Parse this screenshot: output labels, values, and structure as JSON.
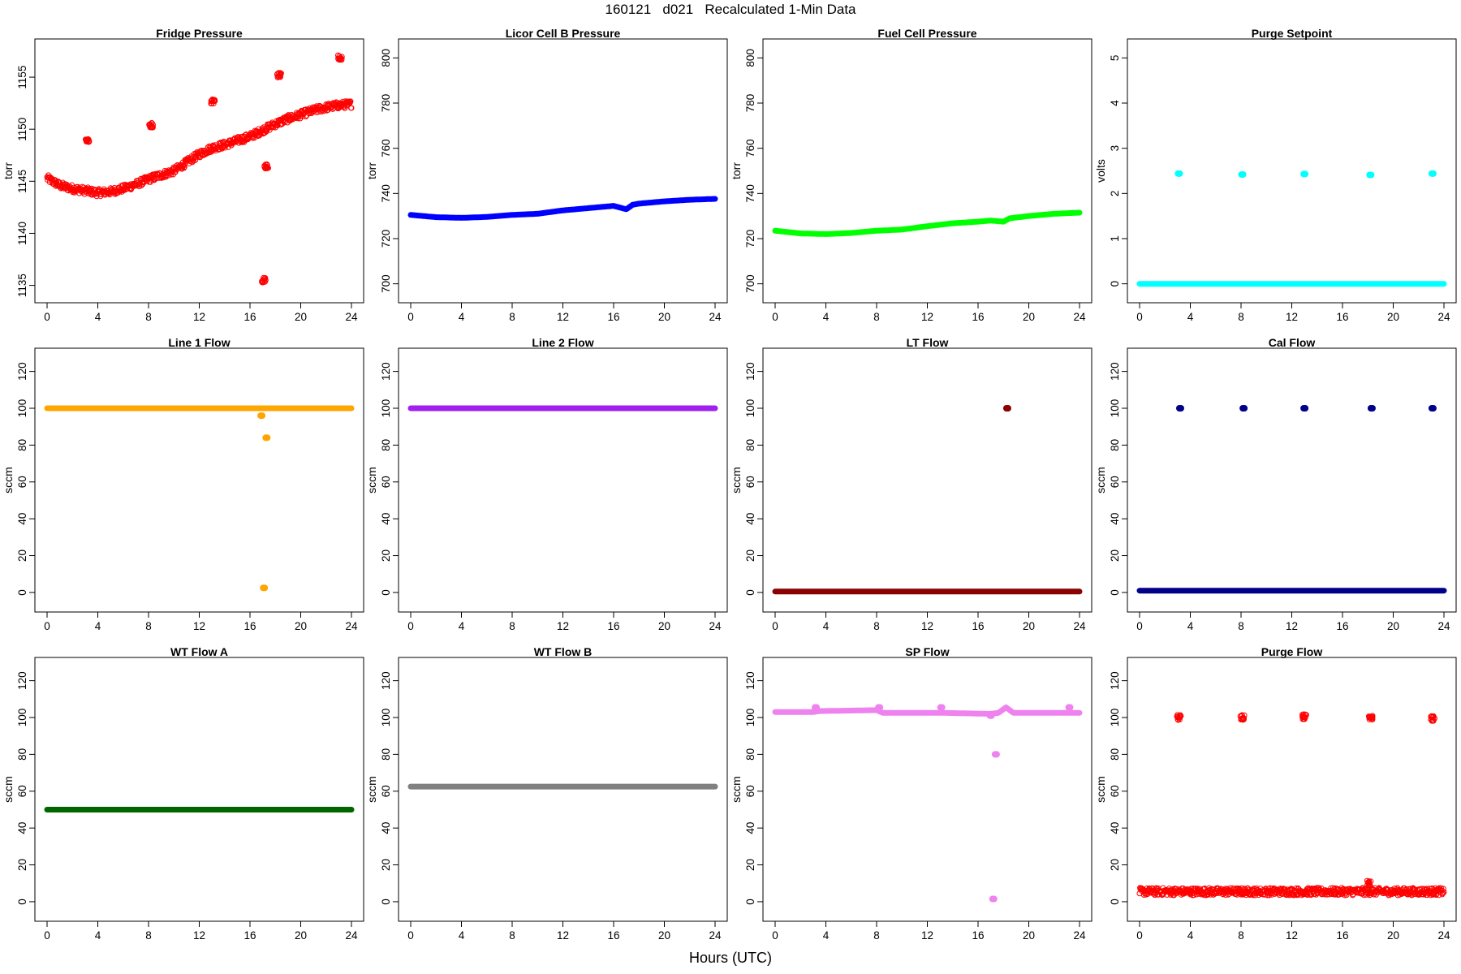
{
  "page": {
    "title": "160121   d021   Recalculated 1-Min Data",
    "xlabel": "Hours (UTC)"
  },
  "chart_data": [
    {
      "type": "scatter",
      "title": "Fridge Pressure",
      "ylabel": "torr",
      "xlim": [
        0,
        24
      ],
      "ylim": [
        1134.5,
        1157.5
      ],
      "xticks": [
        0,
        4,
        8,
        12,
        16,
        20,
        24
      ],
      "yticks": [
        1135,
        1140,
        1145,
        1150,
        1155
      ],
      "color": "#ff0000",
      "marker": "open-circle",
      "series": [
        {
          "x": [
            0,
            1,
            2,
            3,
            4,
            5,
            6,
            7,
            8,
            9,
            10,
            11,
            12,
            13,
            14,
            15,
            16,
            17,
            18,
            19,
            20,
            21,
            22,
            23,
            24
          ],
          "y": [
            1145.3,
            1144.6,
            1144.3,
            1144.1,
            1143.9,
            1144.0,
            1144.3,
            1144.7,
            1145.2,
            1145.6,
            1146.0,
            1146.8,
            1147.6,
            1148.2,
            1148.5,
            1148.9,
            1149.3,
            1149.9,
            1150.5,
            1151.0,
            1151.4,
            1151.8,
            1152.1,
            1152.3,
            1152.4
          ]
        }
      ],
      "spikes": [
        {
          "x": 3.2,
          "y": 1149.0
        },
        {
          "x": 8.2,
          "y": 1150.4
        },
        {
          "x": 13.1,
          "y": 1152.7
        },
        {
          "x": 17.1,
          "y": 1135.5
        },
        {
          "x": 17.3,
          "y": 1146.4
        },
        {
          "x": 18.3,
          "y": 1155.2
        },
        {
          "x": 23.1,
          "y": 1156.9
        }
      ]
    },
    {
      "type": "scatter",
      "title": "Licor Cell B Pressure",
      "ylabel": "torr",
      "xlim": [
        0,
        24
      ],
      "ylim": [
        697,
        803
      ],
      "xticks": [
        0,
        4,
        8,
        12,
        16,
        20,
        24
      ],
      "yticks": [
        700,
        720,
        740,
        760,
        780,
        800
      ],
      "color": "#0000ff",
      "marker": "filled",
      "series": [
        {
          "x": [
            0,
            2,
            4,
            6,
            8,
            10,
            12,
            14,
            16,
            17,
            17.5,
            18,
            20,
            22,
            24
          ],
          "y": [
            730.5,
            729.5,
            729.2,
            729.6,
            730.5,
            731.0,
            732.5,
            733.5,
            734.5,
            733.0,
            735.0,
            735.5,
            736.5,
            737.2,
            737.6
          ]
        }
      ],
      "spikes": []
    },
    {
      "type": "scatter",
      "title": "Fuel Cell Pressure",
      "ylabel": "torr",
      "xlim": [
        0,
        24
      ],
      "ylim": [
        697,
        803
      ],
      "xticks": [
        0,
        4,
        8,
        12,
        16,
        20,
        24
      ],
      "yticks": [
        700,
        720,
        740,
        760,
        780,
        800
      ],
      "color": "#00ff00",
      "marker": "filled",
      "series": [
        {
          "x": [
            0,
            2,
            4,
            6,
            8,
            10,
            12,
            14,
            16,
            17,
            18,
            18.5,
            20,
            22,
            24
          ],
          "y": [
            723.5,
            722.3,
            722.0,
            722.5,
            723.5,
            724.0,
            725.5,
            726.8,
            727.5,
            728.0,
            727.5,
            729.0,
            730.0,
            731.0,
            731.5
          ]
        }
      ],
      "spikes": []
    },
    {
      "type": "scatter",
      "title": "Purge Setpoint",
      "ylabel": "volts",
      "xlim": [
        0,
        24
      ],
      "ylim": [
        -0.15,
        5.15
      ],
      "xticks": [
        0,
        4,
        8,
        12,
        16,
        20,
        24
      ],
      "yticks": [
        0,
        1,
        2,
        3,
        4,
        5
      ],
      "color": "#00ffff",
      "marker": "filled",
      "series": [
        {
          "x": [
            0,
            24
          ],
          "y": [
            0,
            0
          ]
        }
      ],
      "spikes": [
        {
          "x": 3.1,
          "y": 2.44
        },
        {
          "x": 8.1,
          "y": 2.42
        },
        {
          "x": 13.0,
          "y": 2.43
        },
        {
          "x": 18.2,
          "y": 2.41
        },
        {
          "x": 23.1,
          "y": 2.44
        }
      ]
    },
    {
      "type": "scatter",
      "title": "Line 1 Flow",
      "ylabel": "sccm",
      "xlim": [
        0,
        24
      ],
      "ylim": [
        -4,
        126
      ],
      "xticks": [
        0,
        4,
        8,
        12,
        16,
        20,
        24
      ],
      "yticks": [
        0,
        20,
        40,
        60,
        80,
        100,
        120
      ],
      "color": "#ffa500",
      "marker": "filled",
      "series": [
        {
          "x": [
            0,
            24
          ],
          "y": [
            100,
            100
          ]
        }
      ],
      "spikes": [
        {
          "x": 16.9,
          "y": 96
        },
        {
          "x": 17.3,
          "y": 84
        },
        {
          "x": 17.1,
          "y": 2.5
        }
      ]
    },
    {
      "type": "scatter",
      "title": "Line 2 Flow",
      "ylabel": "sccm",
      "xlim": [
        0,
        24
      ],
      "ylim": [
        -4,
        126
      ],
      "xticks": [
        0,
        4,
        8,
        12,
        16,
        20,
        24
      ],
      "yticks": [
        0,
        20,
        40,
        60,
        80,
        100,
        120
      ],
      "color": "#a020f0",
      "marker": "filled",
      "series": [
        {
          "x": [
            0,
            24
          ],
          "y": [
            100,
            100
          ]
        }
      ],
      "spikes": []
    },
    {
      "type": "scatter",
      "title": "LT Flow",
      "ylabel": "sccm",
      "xlim": [
        0,
        24
      ],
      "ylim": [
        -4,
        126
      ],
      "xticks": [
        0,
        4,
        8,
        12,
        16,
        20,
        24
      ],
      "yticks": [
        0,
        20,
        40,
        60,
        80,
        100,
        120
      ],
      "color": "#8b0000",
      "marker": "filled",
      "series": [
        {
          "x": [
            0,
            24
          ],
          "y": [
            0.5,
            0.5
          ]
        }
      ],
      "spikes": [
        {
          "x": 18.3,
          "y": 100
        }
      ]
    },
    {
      "type": "scatter",
      "title": "Cal Flow",
      "ylabel": "sccm",
      "xlim": [
        0,
        24
      ],
      "ylim": [
        -4,
        126
      ],
      "xticks": [
        0,
        4,
        8,
        12,
        16,
        20,
        24
      ],
      "yticks": [
        0,
        20,
        40,
        60,
        80,
        100,
        120
      ],
      "color": "#00008b",
      "marker": "filled",
      "series": [
        {
          "x": [
            0,
            24
          ],
          "y": [
            1,
            1
          ]
        }
      ],
      "spikes": [
        {
          "x": 3.2,
          "y": 100
        },
        {
          "x": 8.2,
          "y": 100
        },
        {
          "x": 13.0,
          "y": 100
        },
        {
          "x": 18.3,
          "y": 100
        },
        {
          "x": 23.1,
          "y": 100
        }
      ]
    },
    {
      "type": "scatter",
      "title": "WT Flow A",
      "ylabel": "sccm",
      "xlim": [
        0,
        24
      ],
      "ylim": [
        -4,
        126
      ],
      "xticks": [
        0,
        4,
        8,
        12,
        16,
        20,
        24
      ],
      "yticks": [
        0,
        20,
        40,
        60,
        80,
        100,
        120
      ],
      "color": "#006400",
      "marker": "filled",
      "series": [
        {
          "x": [
            0,
            24
          ],
          "y": [
            50,
            50
          ]
        }
      ],
      "spikes": []
    },
    {
      "type": "scatter",
      "title": "WT Flow B",
      "ylabel": "sccm",
      "xlim": [
        0,
        24
      ],
      "ylim": [
        -4,
        126
      ],
      "xticks": [
        0,
        4,
        8,
        12,
        16,
        20,
        24
      ],
      "yticks": [
        0,
        20,
        40,
        60,
        80,
        100,
        120
      ],
      "color": "#808080",
      "marker": "filled",
      "series": [
        {
          "x": [
            0,
            24
          ],
          "y": [
            62.5,
            62.5
          ]
        }
      ],
      "spikes": []
    },
    {
      "type": "scatter",
      "title": "SP Flow",
      "ylabel": "sccm",
      "xlim": [
        0,
        24
      ],
      "ylim": [
        -4,
        126
      ],
      "xticks": [
        0,
        4,
        8,
        12,
        16,
        20,
        24
      ],
      "yticks": [
        0,
        20,
        40,
        60,
        80,
        100,
        120
      ],
      "color": "#ee82ee",
      "marker": "filled",
      "series": [
        {
          "x": [
            0,
            3,
            3.5,
            8,
            8.5,
            13,
            13.5,
            16.9,
            17.6,
            18.2,
            18.8,
            23,
            23.5,
            24
          ],
          "y": [
            103,
            103,
            103.5,
            104,
            102.5,
            102.5,
            102.5,
            102,
            102.5,
            105.5,
            102.5,
            102.5,
            102.5,
            102.5
          ]
        }
      ],
      "spikes": [
        {
          "x": 3.2,
          "y": 105.5
        },
        {
          "x": 8.2,
          "y": 105.5
        },
        {
          "x": 13.1,
          "y": 105.5
        },
        {
          "x": 17.0,
          "y": 101
        },
        {
          "x": 17.4,
          "y": 80
        },
        {
          "x": 17.2,
          "y": 1.5
        },
        {
          "x": 23.2,
          "y": 105.5
        }
      ]
    },
    {
      "type": "scatter",
      "title": "Purge Flow",
      "ylabel": "sccm",
      "xlim": [
        0,
        24
      ],
      "ylim": [
        -4,
        126
      ],
      "xticks": [
        0,
        4,
        8,
        12,
        16,
        20,
        24
      ],
      "yticks": [
        0,
        20,
        40,
        60,
        80,
        100,
        120
      ],
      "color": "#ff0000",
      "marker": "open-circle",
      "series": [
        {
          "x": [
            0,
            24
          ],
          "y": [
            5.5,
            5.5
          ]
        }
      ],
      "spikes": [
        {
          "x": 3.1,
          "y": 100
        },
        {
          "x": 8.1,
          "y": 100
        },
        {
          "x": 13.0,
          "y": 100.5
        },
        {
          "x": 18.2,
          "y": 100
        },
        {
          "x": 23.1,
          "y": 99.5
        },
        {
          "x": 18.1,
          "y": 10
        }
      ]
    }
  ]
}
